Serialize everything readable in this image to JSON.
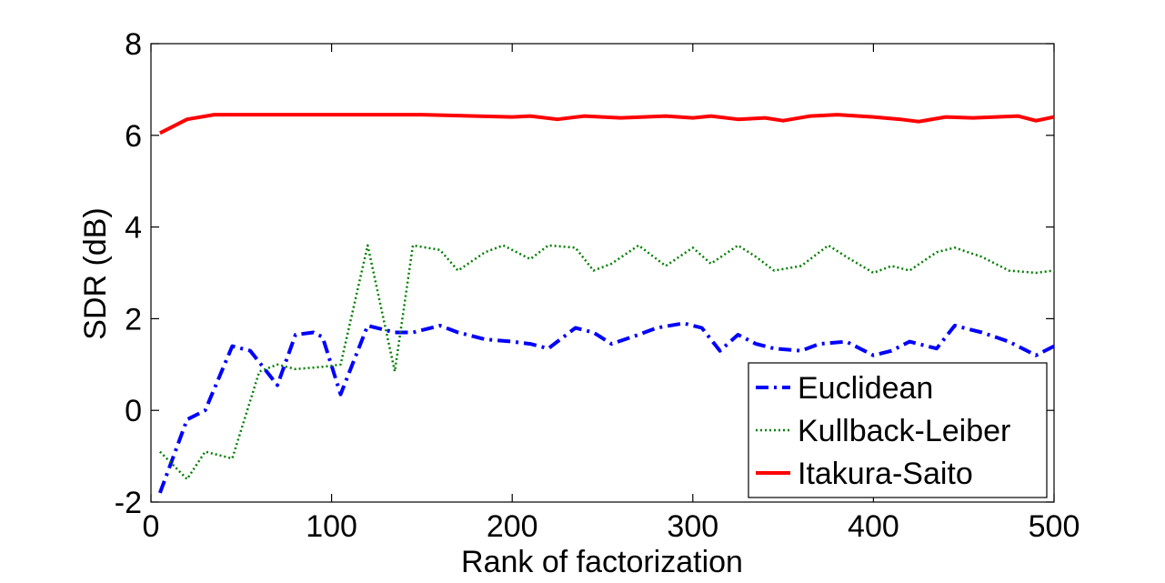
{
  "chart_data": {
    "type": "line",
    "title": "",
    "xlabel": "Rank of factorization",
    "ylabel": "SDR (dB)",
    "xlim": [
      0,
      500
    ],
    "ylim": [
      -2,
      8
    ],
    "x_ticks": [
      0,
      100,
      200,
      300,
      400,
      500
    ],
    "y_ticks": [
      -2,
      0,
      2,
      4,
      6,
      8
    ],
    "x_tick_labels": [
      "0",
      "100",
      "200",
      "300",
      "400",
      "500"
    ],
    "y_tick_labels": [
      "-2",
      "0",
      "2",
      "4",
      "6",
      "8"
    ],
    "grid": false,
    "legend_position": "bottom-right",
    "series": [
      {
        "name": "Euclidean",
        "color": "#0000ff",
        "style": "dash-dot",
        "x": [
          5,
          20,
          30,
          45,
          55,
          70,
          80,
          90,
          95,
          105,
          120,
          135,
          145,
          160,
          170,
          185,
          200,
          210,
          220,
          235,
          245,
          255,
          270,
          280,
          295,
          305,
          315,
          325,
          335,
          345,
          360,
          370,
          385,
          400,
          410,
          420,
          435,
          445,
          460,
          475,
          490,
          500
        ],
        "y": [
          -1.8,
          -0.2,
          0.0,
          1.4,
          1.3,
          0.55,
          1.65,
          1.7,
          1.6,
          0.35,
          1.85,
          1.7,
          1.7,
          1.85,
          1.7,
          1.55,
          1.5,
          1.45,
          1.35,
          1.8,
          1.7,
          1.45,
          1.65,
          1.8,
          1.9,
          1.8,
          1.3,
          1.65,
          1.45,
          1.35,
          1.3,
          1.45,
          1.5,
          1.2,
          1.3,
          1.5,
          1.35,
          1.85,
          1.7,
          1.5,
          1.2,
          1.4
        ]
      },
      {
        "name": "Kullback-Leiber",
        "color": "#007f00",
        "style": "dotted",
        "x": [
          5,
          20,
          30,
          45,
          60,
          70,
          80,
          95,
          105,
          120,
          135,
          145,
          160,
          170,
          185,
          195,
          210,
          220,
          235,
          245,
          255,
          270,
          285,
          300,
          310,
          325,
          335,
          345,
          360,
          375,
          385,
          400,
          410,
          420,
          435,
          445,
          460,
          475,
          490,
          500
        ],
        "y": [
          -0.9,
          -1.5,
          -0.9,
          -1.05,
          0.85,
          1.0,
          0.9,
          0.95,
          1.0,
          3.6,
          0.85,
          3.6,
          3.5,
          3.05,
          3.45,
          3.6,
          3.3,
          3.6,
          3.55,
          3.05,
          3.2,
          3.6,
          3.15,
          3.55,
          3.2,
          3.6,
          3.35,
          3.05,
          3.15,
          3.6,
          3.35,
          3.0,
          3.15,
          3.05,
          3.45,
          3.55,
          3.35,
          3.05,
          3.0,
          3.05
        ]
      },
      {
        "name": "Itakura-Saito",
        "color": "#ff0000",
        "style": "solid",
        "x": [
          5,
          20,
          35,
          60,
          85,
          110,
          150,
          200,
          210,
          225,
          240,
          260,
          285,
          300,
          310,
          325,
          340,
          350,
          365,
          380,
          400,
          415,
          425,
          440,
          455,
          480,
          490,
          500
        ],
        "y": [
          6.05,
          6.35,
          6.45,
          6.45,
          6.45,
          6.45,
          6.45,
          6.4,
          6.42,
          6.35,
          6.42,
          6.38,
          6.42,
          6.38,
          6.42,
          6.35,
          6.38,
          6.32,
          6.42,
          6.45,
          6.4,
          6.35,
          6.3,
          6.4,
          6.38,
          6.42,
          6.32,
          6.4
        ]
      }
    ]
  }
}
